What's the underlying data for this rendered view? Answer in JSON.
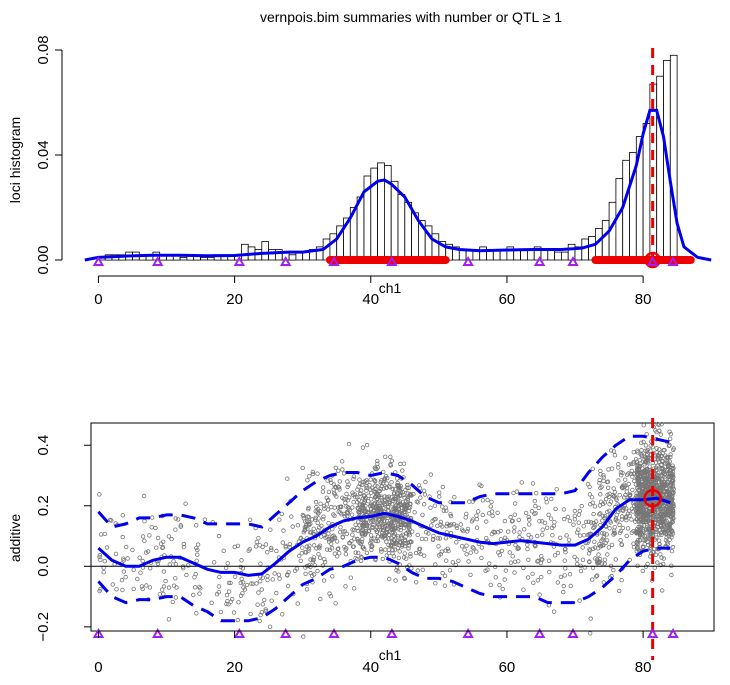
{
  "title": "vernpois.bim summaries with number or QTL ≥ 1",
  "colors": {
    "curve": "#0000EE",
    "interval": "#EE0000",
    "marker": "#A020F0",
    "points": "#777777",
    "bars_fill": "#ffffff",
    "axis": "#000000"
  },
  "chart_data": [
    {
      "type": "bar",
      "title": "vernpois.bim summaries with number or QTL ≥ 1",
      "xlabel": "ch1",
      "ylabel": "loci histogram",
      "xlim": [
        -3,
        91
      ],
      "ylim": [
        0,
        0.08
      ],
      "xticks": [
        "0",
        "20",
        "40",
        "60",
        "80"
      ],
      "yticks": [
        "0.00",
        "0.04",
        "0.08"
      ],
      "bar_width": 1,
      "bins_left_edge": [
        0,
        1,
        2,
        3,
        4,
        5,
        6,
        7,
        8,
        9,
        10,
        11,
        12,
        13,
        14,
        15,
        16,
        17,
        18,
        19,
        20,
        21,
        22,
        23,
        24,
        25,
        26,
        27,
        28,
        29,
        30,
        31,
        32,
        33,
        34,
        35,
        36,
        37,
        38,
        39,
        40,
        41,
        42,
        43,
        44,
        45,
        46,
        47,
        48,
        49,
        50,
        51,
        52,
        53,
        54,
        55,
        56,
        57,
        58,
        59,
        60,
        61,
        62,
        63,
        64,
        65,
        66,
        67,
        68,
        69,
        70,
        71,
        72,
        73,
        74,
        75,
        76,
        77,
        78,
        79,
        80,
        81,
        82,
        83,
        84
      ],
      "values": [
        0.001,
        0.002,
        0.002,
        0.002,
        0.003,
        0.003,
        0.002,
        0.002,
        0.003,
        0.002,
        0.002,
        0.002,
        0.001,
        0.002,
        0.002,
        0.001,
        0.001,
        0.002,
        0.002,
        0.002,
        0.002,
        0.006,
        0.005,
        0.004,
        0.007,
        0.004,
        0.004,
        0.003,
        0.002,
        0.003,
        0.003,
        0.004,
        0.005,
        0.008,
        0.01,
        0.013,
        0.016,
        0.02,
        0.024,
        0.032,
        0.035,
        0.037,
        0.036,
        0.03,
        0.025,
        0.022,
        0.018,
        0.015,
        0.013,
        0.01,
        0.007,
        0.006,
        0.005,
        0.004,
        0.004,
        0.004,
        0.005,
        0.004,
        0.004,
        0.004,
        0.005,
        0.004,
        0.004,
        0.004,
        0.005,
        0.004,
        0.004,
        0.003,
        0.003,
        0.006,
        0.005,
        0.008,
        0.009,
        0.012,
        0.015,
        0.022,
        0.031,
        0.038,
        0.041,
        0.047,
        0.052,
        0.067,
        0.07,
        0.076,
        0.078
      ],
      "density_curve": {
        "x": [
          -2,
          0,
          4,
          8,
          12,
          16,
          20,
          24,
          28,
          30,
          33,
          35,
          37,
          39,
          41,
          42,
          43,
          45,
          47,
          49,
          51,
          53,
          56,
          60,
          64,
          68,
          71,
          73,
          75,
          77,
          79,
          80,
          81,
          82,
          83,
          84,
          85,
          86,
          88,
          90
        ],
        "y": [
          0,
          0.001,
          0.0015,
          0.0018,
          0.0018,
          0.0016,
          0.0017,
          0.0025,
          0.003,
          0.003,
          0.004,
          0.008,
          0.016,
          0.026,
          0.03,
          0.0305,
          0.029,
          0.024,
          0.015,
          0.008,
          0.005,
          0.004,
          0.0035,
          0.0038,
          0.004,
          0.004,
          0.0045,
          0.006,
          0.011,
          0.02,
          0.036,
          0.048,
          0.057,
          0.057,
          0.047,
          0.03,
          0.014,
          0.005,
          0.001,
          0
        ]
      },
      "credible_intervals": [
        [
          34,
          51
        ],
        [
          73,
          87
        ]
      ],
      "qtl_estimate": {
        "x": 81.4,
        "y": 0
      },
      "markers": [
        0,
        8.7,
        20.7,
        27.5,
        34.6,
        43.1,
        54.3,
        64.8,
        69.7,
        81.4,
        84.4
      ]
    },
    {
      "type": "scatter",
      "xlabel": "ch1",
      "ylabel": "additive",
      "xlim": [
        -3,
        91
      ],
      "ylim": [
        -0.26,
        0.49
      ],
      "xticks": [
        "0",
        "20",
        "40",
        "60",
        "80"
      ],
      "yticks": [
        "−0.2",
        "0.0",
        "0.2",
        "0.4"
      ],
      "hline": 0,
      "mean_curve": {
        "x": [
          0,
          2,
          4,
          6,
          8,
          10,
          12,
          14,
          16,
          18,
          20,
          22,
          24,
          26,
          28,
          30,
          32,
          34,
          36,
          38,
          40,
          42,
          44,
          46,
          48,
          50,
          52,
          54,
          56,
          58,
          60,
          62,
          64,
          66,
          68,
          70,
          72,
          74,
          76,
          78,
          80,
          82,
          84
        ],
        "y": [
          0.06,
          0.02,
          0.0,
          0.0,
          0.02,
          0.03,
          0.03,
          0.01,
          -0.01,
          -0.02,
          -0.02,
          -0.03,
          -0.025,
          0.01,
          0.05,
          0.08,
          0.1,
          0.13,
          0.15,
          0.16,
          0.165,
          0.175,
          0.165,
          0.15,
          0.13,
          0.11,
          0.1,
          0.09,
          0.08,
          0.075,
          0.08,
          0.085,
          0.08,
          0.075,
          0.07,
          0.07,
          0.09,
          0.13,
          0.19,
          0.22,
          0.22,
          0.225,
          0.21
        ]
      },
      "upper_band": {
        "x": [
          0,
          2,
          4,
          6,
          8,
          10,
          12,
          14,
          16,
          18,
          20,
          22,
          24,
          26,
          28,
          30,
          32,
          34,
          36,
          38,
          40,
          42,
          44,
          46,
          48,
          50,
          52,
          54,
          56,
          58,
          60,
          62,
          64,
          66,
          68,
          70,
          72,
          74,
          76,
          78,
          80,
          82,
          84
        ],
        "y": [
          0.18,
          0.13,
          0.14,
          0.16,
          0.16,
          0.17,
          0.17,
          0.16,
          0.14,
          0.14,
          0.14,
          0.14,
          0.13,
          0.17,
          0.21,
          0.25,
          0.28,
          0.3,
          0.31,
          0.31,
          0.3,
          0.31,
          0.3,
          0.27,
          0.23,
          0.21,
          0.21,
          0.21,
          0.23,
          0.24,
          0.24,
          0.24,
          0.24,
          0.24,
          0.24,
          0.25,
          0.31,
          0.36,
          0.4,
          0.43,
          0.43,
          0.42,
          0.41
        ]
      },
      "lower_band": {
        "x": [
          0,
          2,
          4,
          6,
          8,
          10,
          12,
          14,
          16,
          18,
          20,
          22,
          24,
          26,
          28,
          30,
          32,
          34,
          36,
          38,
          40,
          42,
          44,
          46,
          48,
          50,
          52,
          54,
          56,
          58,
          60,
          62,
          64,
          66,
          68,
          70,
          72,
          74,
          76,
          78,
          80,
          82,
          84
        ],
        "y": [
          -0.05,
          -0.1,
          -0.12,
          -0.11,
          -0.11,
          -0.1,
          -0.1,
          -0.13,
          -0.15,
          -0.18,
          -0.18,
          -0.18,
          -0.17,
          -0.14,
          -0.1,
          -0.06,
          -0.04,
          -0.01,
          0.0,
          0.02,
          0.03,
          0.03,
          0.01,
          -0.02,
          -0.04,
          -0.04,
          -0.05,
          -0.07,
          -0.09,
          -0.1,
          -0.1,
          -0.1,
          -0.1,
          -0.12,
          -0.12,
          -0.12,
          -0.1,
          -0.07,
          -0.03,
          0.02,
          0.05,
          0.06,
          0.06
        ]
      },
      "point_clusters": [
        {
          "x_range": [
            0,
            30
          ],
          "count": 230,
          "spread": 0.085
        },
        {
          "x_range": [
            30,
            38
          ],
          "count": 230,
          "spread": 0.09
        },
        {
          "x_range": [
            38,
            46
          ],
          "count": 560,
          "spread": 0.075
        },
        {
          "x_range": [
            46,
            72
          ],
          "count": 300,
          "spread": 0.085
        },
        {
          "x_range": [
            72,
            79
          ],
          "count": 220,
          "spread": 0.095
        },
        {
          "x_range": [
            79,
            84.5
          ],
          "count": 950,
          "spread": 0.09
        }
      ],
      "qtl_estimate": {
        "x": 81.4,
        "y": 0.225
      },
      "markers": [
        0,
        8.7,
        20.7,
        27.5,
        34.6,
        43.1,
        54.3,
        64.8,
        69.7,
        81.4,
        84.4
      ]
    }
  ]
}
